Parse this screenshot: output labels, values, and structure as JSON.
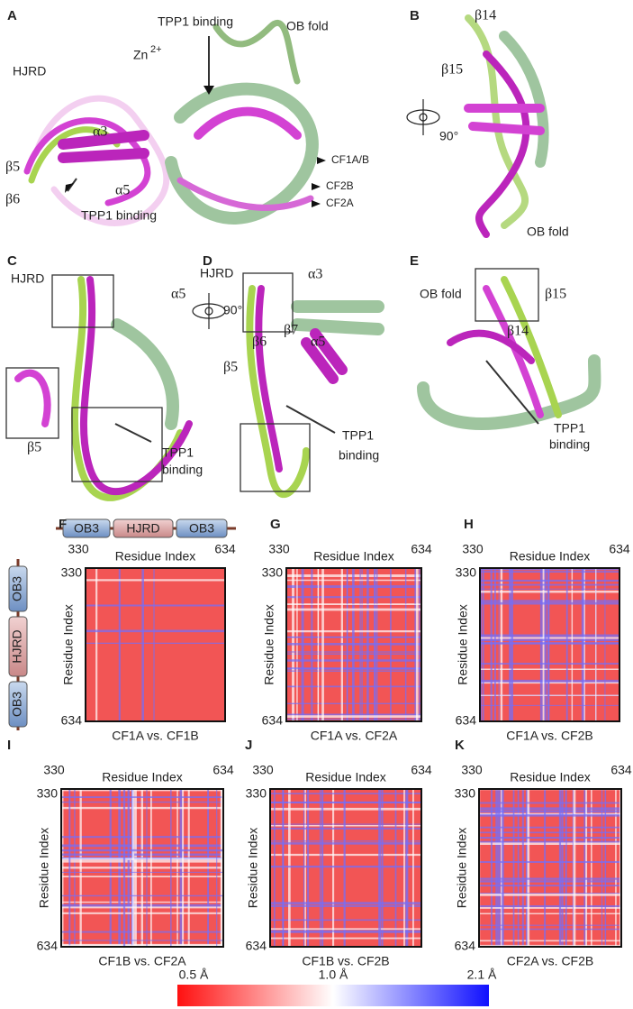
{
  "panels": {
    "A": {
      "label": "A",
      "texts": [
        "TPP1 binding",
        "OB fold",
        "Zn",
        "2+",
        "HJRD",
        "α3",
        "α5",
        "β5",
        "β6",
        "TPP1 binding",
        "CF1A/B",
        "CF2B",
        "CF2A"
      ]
    },
    "B": {
      "label": "B",
      "texts": [
        "β14",
        "β15",
        "90°",
        "OB fold"
      ]
    },
    "C": {
      "label": "C",
      "texts": [
        "HJRD",
        "α5",
        "90°",
        "β5",
        "TPP1",
        "binding"
      ]
    },
    "D": {
      "label": "D",
      "texts": [
        "HJRD",
        "α3",
        "β6",
        "β7",
        "α5",
        "β5",
        "TPP1",
        "binding"
      ]
    },
    "E": {
      "label": "E",
      "texts": [
        "OB fold",
        "β15",
        "β14",
        "TPP1",
        "binding"
      ]
    },
    "F": {
      "label": "F",
      "domains": [
        "OB3",
        "HJRD",
        "OB3"
      ]
    }
  },
  "heatmaps": [
    {
      "label": "F",
      "x_axis": "Residue Index",
      "y_axis": "Residue Index",
      "xticks": [
        330,
        634
      ],
      "yticks": [
        330,
        634
      ],
      "title": "CF1A vs. CF1B"
    },
    {
      "label": "G",
      "x_axis": "Residue Index",
      "y_axis": "Residue Index",
      "xticks": [
        330,
        634
      ],
      "yticks": [
        330,
        634
      ],
      "title": "CF1A vs. CF2A"
    },
    {
      "label": "H",
      "x_axis": "Residue Index",
      "y_axis": "Residue Index",
      "xticks": [
        330,
        634
      ],
      "yticks": [
        330,
        634
      ],
      "title": "CF1A vs. CF2B"
    },
    {
      "label": "I",
      "x_axis": "Residue Index",
      "y_axis": "Residue Index",
      "xticks": [
        330,
        634
      ],
      "yticks": [
        330,
        634
      ],
      "title": "CF1B vs. CF2A"
    },
    {
      "label": "J",
      "x_axis": "Residue Index",
      "y_axis": "Residue Index",
      "xticks": [
        330,
        634
      ],
      "yticks": [
        330,
        634
      ],
      "title": "CF1B vs. CF2B"
    },
    {
      "label": "K",
      "x_axis": "Residue Index",
      "y_axis": "Residue Index",
      "xticks": [
        330,
        634
      ],
      "yticks": [
        330,
        634
      ],
      "title": "CF2A vs. CF2B"
    }
  ],
  "colorbar": {
    "labels": [
      "0.5 Å",
      "1.0 Å",
      "2.1 Å"
    ]
  }
}
